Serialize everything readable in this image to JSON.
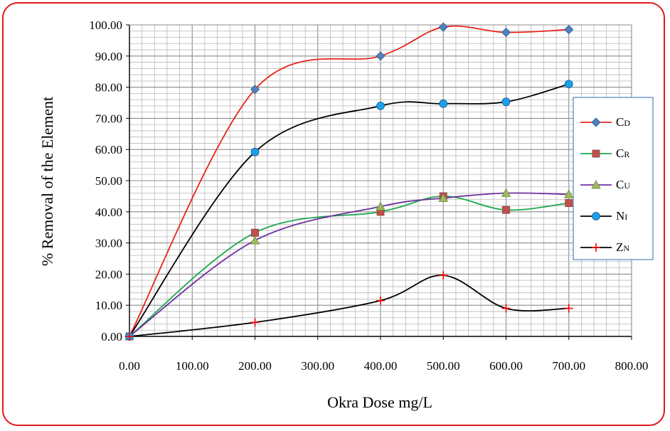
{
  "chart_data": {
    "type": "line",
    "xlabel": "Okra Dose mg/L",
    "ylabel": "% Removal of the Element",
    "xlim": [
      0,
      800
    ],
    "ylim": [
      0,
      100
    ],
    "x_ticks": [
      "0.00",
      "100.00",
      "200.00",
      "300.00",
      "400.00",
      "500.00",
      "600.00",
      "700.00",
      "800.00"
    ],
    "y_ticks": [
      "0.00",
      "10.00",
      "20.00",
      "30.00",
      "40.00",
      "50.00",
      "60.00",
      "70.00",
      "80.00",
      "90.00",
      "100.00"
    ],
    "grid": true,
    "smooth": true,
    "legend_position": "right",
    "x": [
      0,
      200,
      400,
      500,
      600,
      700
    ],
    "series": [
      {
        "name": "CD",
        "color": "#e8241c",
        "marker": "diamond",
        "marker_color": "#4f81bd",
        "values": [
          0,
          79.3,
          90.0,
          99.3,
          97.6,
          98.5
        ]
      },
      {
        "name": "CR",
        "color": "#1aa84a",
        "marker": "square",
        "marker_color": "#c0504d",
        "values": [
          0,
          33.3,
          40.0,
          45.0,
          40.6,
          42.8
        ]
      },
      {
        "name": "CU",
        "color": "#7030a0",
        "marker": "triangle",
        "marker_color": "#9bbb59",
        "values": [
          0,
          30.8,
          41.7,
          44.4,
          46.0,
          45.6
        ]
      },
      {
        "name": "NI",
        "color": "#000000",
        "marker": "circle",
        "marker_color": "#1f9ee8",
        "values": [
          0,
          59.2,
          74.0,
          74.7,
          75.3,
          81.0
        ]
      },
      {
        "name": "ZN",
        "color": "#000000",
        "marker": "plus",
        "marker_color": "#ff0000",
        "values": [
          0,
          4.5,
          11.5,
          19.6,
          9.0,
          9.0
        ]
      }
    ]
  }
}
